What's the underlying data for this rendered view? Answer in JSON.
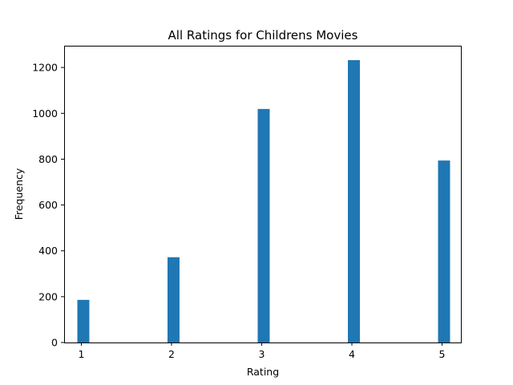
{
  "chart_data": {
    "type": "bar",
    "title": "All Ratings for Childrens Movies",
    "xlabel": "Rating",
    "ylabel": "Frequency",
    "categories": [
      1,
      2,
      3,
      4,
      5
    ],
    "values": [
      186,
      372,
      1019,
      1232,
      794
    ],
    "xlim": [
      0.8,
      5.2
    ],
    "ylim": [
      0,
      1295
    ],
    "xticks": [
      "1",
      "2",
      "3",
      "4",
      "5"
    ],
    "yticks": [
      "0",
      "200",
      "400",
      "600",
      "800",
      "1000",
      "1200"
    ],
    "bar_color": "#1f77b4",
    "grid": false,
    "legend": "none"
  }
}
